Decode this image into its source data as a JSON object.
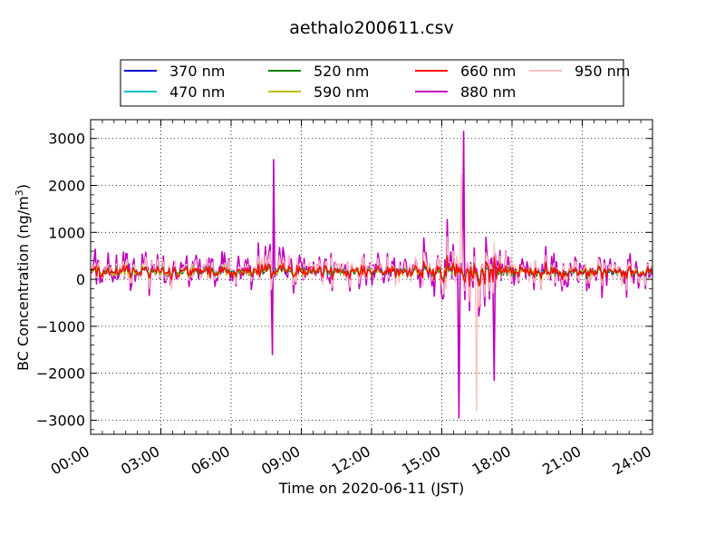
{
  "chart_data": {
    "type": "line",
    "title": "aethalo200611.csv",
    "xlabel": "Time on 2020-06-11 (JST)",
    "ylabel_main": "BC Concentration (ng/m",
    "ylabel_sup": "3",
    "ylabel_end": ")",
    "x_ticks": [
      "00:00",
      "03:00",
      "06:00",
      "09:00",
      "12:00",
      "15:00",
      "18:00",
      "21:00",
      "24:00"
    ],
    "x_range_hours": [
      0,
      24
    ],
    "y_ticks": [
      "3000",
      "2000",
      "1000",
      "0",
      "−1000",
      "−2000",
      "−3000"
    ],
    "ylim": [
      -3300,
      3400
    ],
    "grid": true,
    "legend_position": "top-center, above plot",
    "series": [
      {
        "name": "370 nm",
        "color": "#0000cc",
        "amp": 0.25
      },
      {
        "name": "470 nm",
        "color": "#00bfbf",
        "amp": 0.25
      },
      {
        "name": "520 nm",
        "color": "#007f00",
        "amp": 0.3
      },
      {
        "name": "590 nm",
        "color": "#bfbf00",
        "amp": 0.32
      },
      {
        "name": "660 nm",
        "color": "#ff0000",
        "amp": 0.35
      },
      {
        "name": "880 nm",
        "color": "#bf00bf",
        "amp": 1.0
      },
      {
        "name": "950 nm",
        "color": "#ffbfbf",
        "amp": 0.75
      }
    ],
    "notable_values_880nm": [
      {
        "time": "07:50",
        "value": 2550
      },
      {
        "time": "15:55",
        "value": 3150
      },
      {
        "time": "15:45",
        "value": -2950
      },
      {
        "time": "07:45",
        "value": -1600
      },
      {
        "time": "17:15",
        "value": -2150
      }
    ],
    "notable_values_950nm": [
      {
        "time": "15:50",
        "value": 2250
      },
      {
        "time": "16:30",
        "value": -2800
      }
    ]
  }
}
